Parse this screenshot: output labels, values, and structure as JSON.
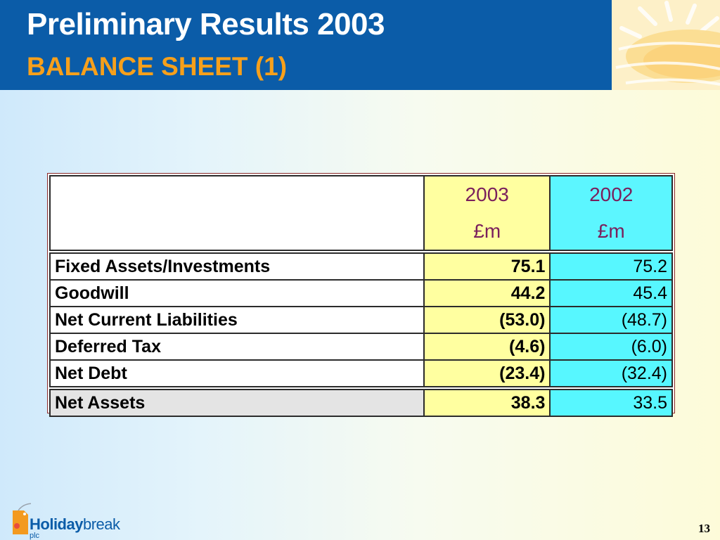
{
  "slide": {
    "title": "Preliminary Results 2003",
    "subtitle": "BALANCE SHEET (1)",
    "page_number": "13"
  },
  "table": {
    "header": {
      "col1": "",
      "col2_line1": "2003",
      "col2_line2": "£m",
      "col3_line1": "2002",
      "col3_line2": "£m"
    },
    "rows": [
      {
        "label": "Fixed Assets/Investments",
        "v2003": "75.1",
        "v2002": "75.2"
      },
      {
        "label": "Goodwill",
        "v2003": "44.2",
        "v2002": "45.4"
      },
      {
        "label": "Net Current Liabilities",
        "v2003": "(53.0)",
        "v2002": "(48.7)"
      },
      {
        "label": "Deferred Tax",
        "v2003": "(4.6)",
        "v2002": "(6.0)"
      },
      {
        "label": "Net Debt",
        "v2003": "(23.4)",
        "v2002": "(32.4)"
      }
    ],
    "total": {
      "label": "Net Assets",
      "v2003": "38.3",
      "v2002": "33.5"
    }
  },
  "logo": {
    "brand_bold": "Holiday",
    "brand_regular": "break",
    "suffix": "plc"
  },
  "colors": {
    "header_blue": "#0b5ca8",
    "subtitle_orange": "#f7a01b",
    "col_2003_bg": "#ffffa0",
    "col_2002_bg": "#57f7ff",
    "year_header_text": "#7a1f5c"
  }
}
